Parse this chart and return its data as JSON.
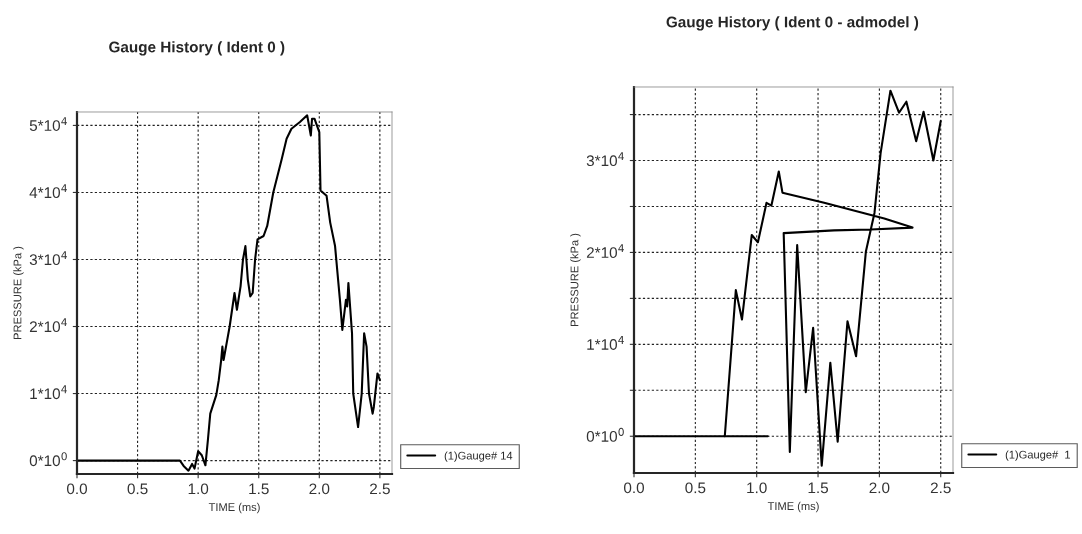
{
  "chart_data": [
    {
      "type": "line",
      "title": "Gauge History ( Ident 0 )",
      "xlabel": "TIME (ms)",
      "ylabel": "PRESSURE (kPa )",
      "xlim": [
        0,
        2.6
      ],
      "xticks": [
        {
          "value": 0,
          "label": "0.0"
        },
        0.5,
        {
          "value": 1,
          "label": "1.0"
        },
        1.5,
        {
          "value": 2,
          "label": "2.0"
        },
        2.5
      ],
      "ylim": [
        -2000,
        52000
      ],
      "yticks": [
        {
          "value": 0,
          "label": "0*10$^{0}$"
        },
        {
          "value": 10000,
          "label": "1*10$^{4}$"
        },
        {
          "value": 20000,
          "label": "2*10$^{4}$"
        },
        {
          "value": 30000,
          "label": "3*10$^{4}$"
        },
        {
          "value": 40000,
          "label": "4*10$^{4}$"
        },
        {
          "value": 50000,
          "label": "5*10$^{4}$"
        }
      ],
      "grid": true,
      "legend": "bottom right",
      "line_style": "solid",
      "marker": "none",
      "series": [
        {
          "name": "(1)Gauge# 14",
          "color": "#000000",
          "x": [
            0,
            0.85,
            0.88,
            0.92,
            0.95,
            0.97,
            1.0,
            1.03,
            1.06,
            1.08,
            1.1,
            1.15,
            1.17,
            1.19,
            1.2,
            1.21,
            1.24,
            1.26,
            1.3,
            1.32,
            1.35,
            1.37,
            1.39,
            1.41,
            1.43,
            1.45,
            1.47,
            1.49,
            1.54,
            1.57,
            1.62,
            1.69,
            1.73,
            1.77,
            1.84,
            1.9,
            1.93,
            1.94,
            1.96,
            2.0,
            2.01,
            2.06,
            2.09,
            2.13,
            2.17,
            2.19,
            2.22,
            2.23,
            2.24,
            2.27,
            2.28,
            2.32,
            2.35,
            2.37,
            2.39,
            2.41,
            2.44,
            2.45,
            2.48,
            2.5
          ],
          "values": [
            0,
            0,
            -800,
            -1500,
            -500,
            -1200,
            1400,
            800,
            -700,
            3000,
            7000,
            9800,
            12000,
            15000,
            17000,
            15000,
            18000,
            20000,
            25000,
            22500,
            26000,
            30000,
            32000,
            27000,
            24500,
            25000,
            30000,
            33000,
            33500,
            35000,
            40000,
            45000,
            48000,
            49500,
            50500,
            51500,
            48500,
            51000,
            51000,
            49000,
            40300,
            39500,
            35500,
            32000,
            24000,
            19500,
            24000,
            23000,
            26500,
            19000,
            10000,
            5000,
            10000,
            19000,
            17000,
            10000,
            7000,
            8000,
            13000,
            12000
          ]
        }
      ]
    },
    {
      "type": "line",
      "title": "Gauge History ( Ident 0 - admodel )",
      "xlabel": "TIME (ms)",
      "ylabel": "PRESSURE (kPa )",
      "xlim": [
        0,
        2.6
      ],
      "xticks": [
        {
          "value": 0,
          "label": "0.0"
        },
        0.5,
        {
          "value": 1,
          "label": "1.0"
        },
        1.5,
        {
          "value": 2,
          "label": "2.0"
        },
        2.5
      ],
      "ylim": [
        -4000,
        38000
      ],
      "yticks": [
        {
          "value": 0,
          "label": "0*10$^{0}$"
        },
        {
          "value": 5000,
          "label": null
        },
        {
          "value": 10000,
          "label": "1*10$^{4}$"
        },
        {
          "value": 15000,
          "label": null
        },
        {
          "value": 20000,
          "label": "2*10$^{4}$"
        },
        {
          "value": 25000,
          "label": null
        },
        {
          "value": 30000,
          "label": "3*10$^{4}$"
        },
        {
          "value": 35000,
          "label": null
        }
      ],
      "grid": true,
      "legend": "bottom right",
      "line_style": "solid",
      "marker": "none",
      "series": [
        {
          "color": "#000000",
          "x": [
            0,
            1.09
          ],
          "values": [
            0,
            0
          ]
        },
        {
          "name": "(1)Gauge#  1",
          "color": "#000000",
          "x": [
            0.74,
            0.83,
            0.88,
            0.96,
            1.01,
            1.08,
            1.12,
            1.18,
            1.21,
            1.55,
            2.04,
            2.27,
            1.93,
            1.63,
            1.22,
            1.27,
            1.33,
            1.4,
            1.46,
            1.53,
            1.6,
            1.66,
            1.74,
            1.81,
            1.89,
            1.96,
            2.01,
            2.09,
            2.16,
            2.22,
            2.3,
            2.36,
            2.44,
            2.5
          ],
          "values": [
            0,
            15900,
            12700,
            21900,
            21100,
            25400,
            25100,
            28800,
            26500,
            25400,
            23700,
            22700,
            22500,
            22400,
            22100,
            -1700,
            20800,
            4800,
            11800,
            -3200,
            8000,
            -600,
            12500,
            8700,
            20100,
            24300,
            30800,
            37600,
            35200,
            36400,
            32100,
            35300,
            30000,
            34300
          ]
        }
      ]
    }
  ]
}
